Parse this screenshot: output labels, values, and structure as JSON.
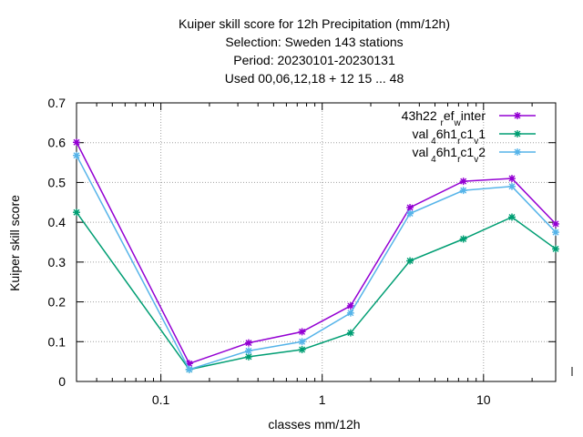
{
  "chart_data": {
    "type": "line",
    "title_lines": [
      "Kuiper skill score  for 12h Precipitation (mm/12h)",
      "Selection: Sweden     143 stations",
      "Period: 20230101-20230131",
      "Used  00,06,12,18  + 12 15 ... 48"
    ],
    "xlabel": "classes mm/12h",
    "ylabel": "Kuiper skill score",
    "x_scale": "log",
    "xlim": [
      0.03,
      28
    ],
    "ylim": [
      0,
      0.7
    ],
    "x_ticks": [
      {
        "value": 0.1,
        "label": "0.1"
      },
      {
        "value": 1,
        "label": "1"
      },
      {
        "value": 10,
        "label": "10"
      }
    ],
    "y_ticks": [
      {
        "value": 0,
        "label": "0"
      },
      {
        "value": 0.1,
        "label": "0.1"
      },
      {
        "value": 0.2,
        "label": "0.2"
      },
      {
        "value": 0.3,
        "label": "0.3"
      },
      {
        "value": 0.4,
        "label": "0.4"
      },
      {
        "value": 0.5,
        "label": "0.5"
      },
      {
        "value": 0.6,
        "label": "0.6"
      },
      {
        "value": 0.7,
        "label": "0.7"
      }
    ],
    "grid": true,
    "legend_position": "top-right",
    "x": [
      0.03,
      0.15,
      0.35,
      0.75,
      1.5,
      3.5,
      7.5,
      15,
      28
    ],
    "series": [
      {
        "name": "43h22_ref_winter",
        "legend_parts": [
          [
            "43h22 ",
            ""
          ],
          [
            "r",
            "sub"
          ],
          [
            "ef",
            ""
          ],
          [
            "w",
            "sub"
          ],
          [
            "inter",
            ""
          ]
        ],
        "color": "#9400d3",
        "values": [
          0.601,
          0.045,
          0.097,
          0.125,
          0.19,
          0.437,
          0.503,
          0.51,
          0.396
        ]
      },
      {
        "name": "val_46h1_rc1_v1",
        "legend_parts": [
          [
            "val",
            ""
          ],
          [
            " 4",
            "sub"
          ],
          [
            "6h1",
            ""
          ],
          [
            "r",
            "sub"
          ],
          [
            "c1",
            ""
          ],
          [
            "v",
            "sub"
          ],
          [
            "1",
            ""
          ]
        ],
        "color": "#009e73",
        "values": [
          0.425,
          0.03,
          0.062,
          0.08,
          0.122,
          0.303,
          0.358,
          0.413,
          0.333
        ]
      },
      {
        "name": "val_46h1_rc1_v2",
        "legend_parts": [
          [
            "val",
            ""
          ],
          [
            " 4",
            "sub"
          ],
          [
            "6h1",
            ""
          ],
          [
            "r",
            "sub"
          ],
          [
            "c1",
            ""
          ],
          [
            "v",
            "sub"
          ],
          [
            "2",
            ""
          ]
        ],
        "color": "#56b4e9",
        "values": [
          0.568,
          0.03,
          0.077,
          0.1,
          0.172,
          0.422,
          0.48,
          0.49,
          0.375
        ]
      }
    ]
  }
}
